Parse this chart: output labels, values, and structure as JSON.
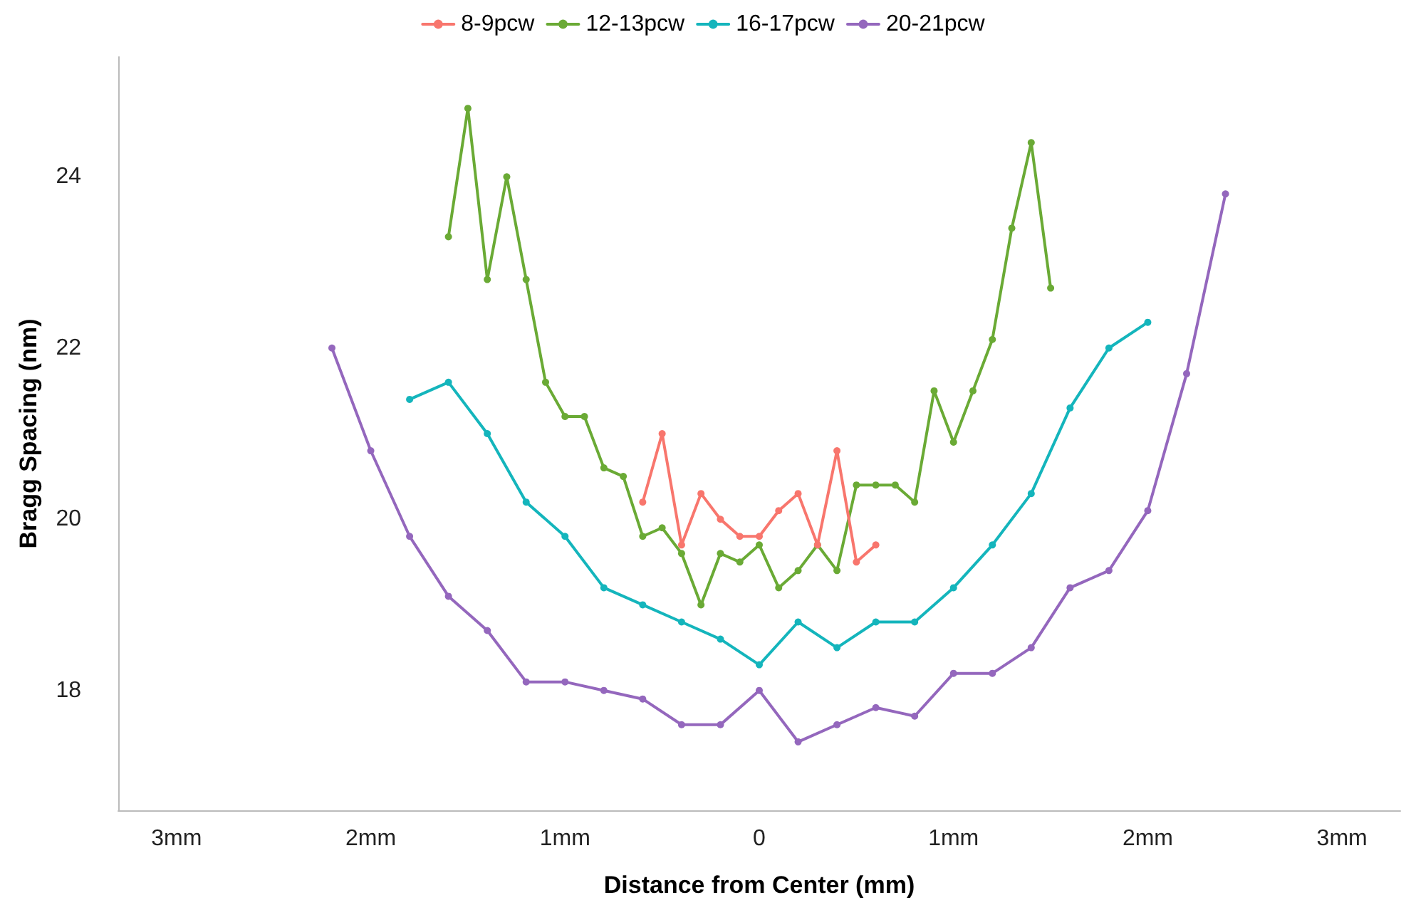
{
  "chart_data": {
    "type": "line",
    "xlabel": "Distance from Center (mm)",
    "ylabel": "Bragg Spacing (nm)",
    "xlim": [
      -3.3,
      3.3
    ],
    "xticks": [
      {
        "value": -3,
        "label": "3mm"
      },
      {
        "value": -2,
        "label": "2mm"
      },
      {
        "value": -1,
        "label": "1mm"
      },
      0,
      {
        "value": 1,
        "label": "1mm"
      },
      {
        "value": 2,
        "label": "2mm"
      },
      {
        "value": 3,
        "label": "3mm"
      }
    ],
    "ylim": [
      16.6,
      25.4
    ],
    "yticks": [
      18,
      20,
      22,
      24
    ],
    "grid": false,
    "legend": "top",
    "marker": "circle",
    "line_style": "solid",
    "series": [
      {
        "name": "8-9pcw",
        "color": "#f8766d",
        "x": [
          -0.6,
          -0.5,
          -0.4,
          -0.3,
          -0.2,
          -0.1,
          0,
          0.1,
          0.2,
          0.3,
          0.4,
          0.5,
          0.6
        ],
        "values": [
          20.2,
          21.0,
          19.7,
          20.3,
          20.0,
          19.8,
          19.8,
          20.1,
          20.3,
          19.7,
          20.8,
          19.5,
          19.7
        ]
      },
      {
        "name": "12-13pcw",
        "color": "#6aaa35",
        "x": [
          -1.6,
          -1.5,
          -1.4,
          -1.3,
          -1.2,
          -1.1,
          -1.0,
          -0.9,
          -0.8,
          -0.7,
          -0.6,
          -0.5,
          -0.4,
          -0.3,
          -0.2,
          -0.1,
          0,
          0.1,
          0.2,
          0.3,
          0.4,
          0.5,
          0.6,
          0.7,
          0.8,
          0.9,
          1.0,
          1.1,
          1.2,
          1.3,
          1.4,
          1.5
        ],
        "values": [
          23.3,
          24.8,
          22.8,
          24.0,
          22.8,
          21.6,
          21.2,
          21.2,
          20.6,
          20.5,
          19.8,
          19.9,
          19.6,
          19.0,
          19.6,
          19.5,
          19.7,
          19.2,
          19.4,
          19.7,
          19.4,
          20.4,
          20.4,
          20.4,
          20.2,
          21.5,
          20.9,
          21.5,
          22.1,
          23.4,
          24.4,
          22.7
        ]
      },
      {
        "name": "16-17pcw",
        "color": "#14b5bc",
        "x": [
          -1.8,
          -1.6,
          -1.4,
          -1.2,
          -1.0,
          -0.8,
          -0.6,
          -0.4,
          -0.2,
          0,
          0.2,
          0.4,
          0.6,
          0.8,
          1.0,
          1.2,
          1.4,
          1.6,
          1.8,
          2.0
        ],
        "values": [
          21.4,
          21.6,
          21.0,
          20.2,
          19.8,
          19.2,
          19.0,
          18.8,
          18.6,
          18.3,
          18.8,
          18.5,
          18.8,
          18.8,
          19.2,
          19.7,
          20.3,
          21.3,
          22.0,
          22.3
        ]
      },
      {
        "name": "20-21pcw",
        "color": "#9467bd",
        "x": [
          -2.2,
          -2.0,
          -1.8,
          -1.6,
          -1.4,
          -1.2,
          -1.0,
          -0.8,
          -0.6,
          -0.4,
          -0.2,
          0,
          0.2,
          0.4,
          0.6,
          0.8,
          1.0,
          1.2,
          1.4,
          1.6,
          1.8,
          2.0,
          2.2,
          2.4
        ],
        "values": [
          22.0,
          20.8,
          19.8,
          19.1,
          18.7,
          18.1,
          18.1,
          18.0,
          17.9,
          17.6,
          17.6,
          18.0,
          17.4,
          17.6,
          17.8,
          17.7,
          18.2,
          18.2,
          18.5,
          19.2,
          19.4,
          20.1,
          21.7,
          23.8
        ]
      }
    ]
  }
}
